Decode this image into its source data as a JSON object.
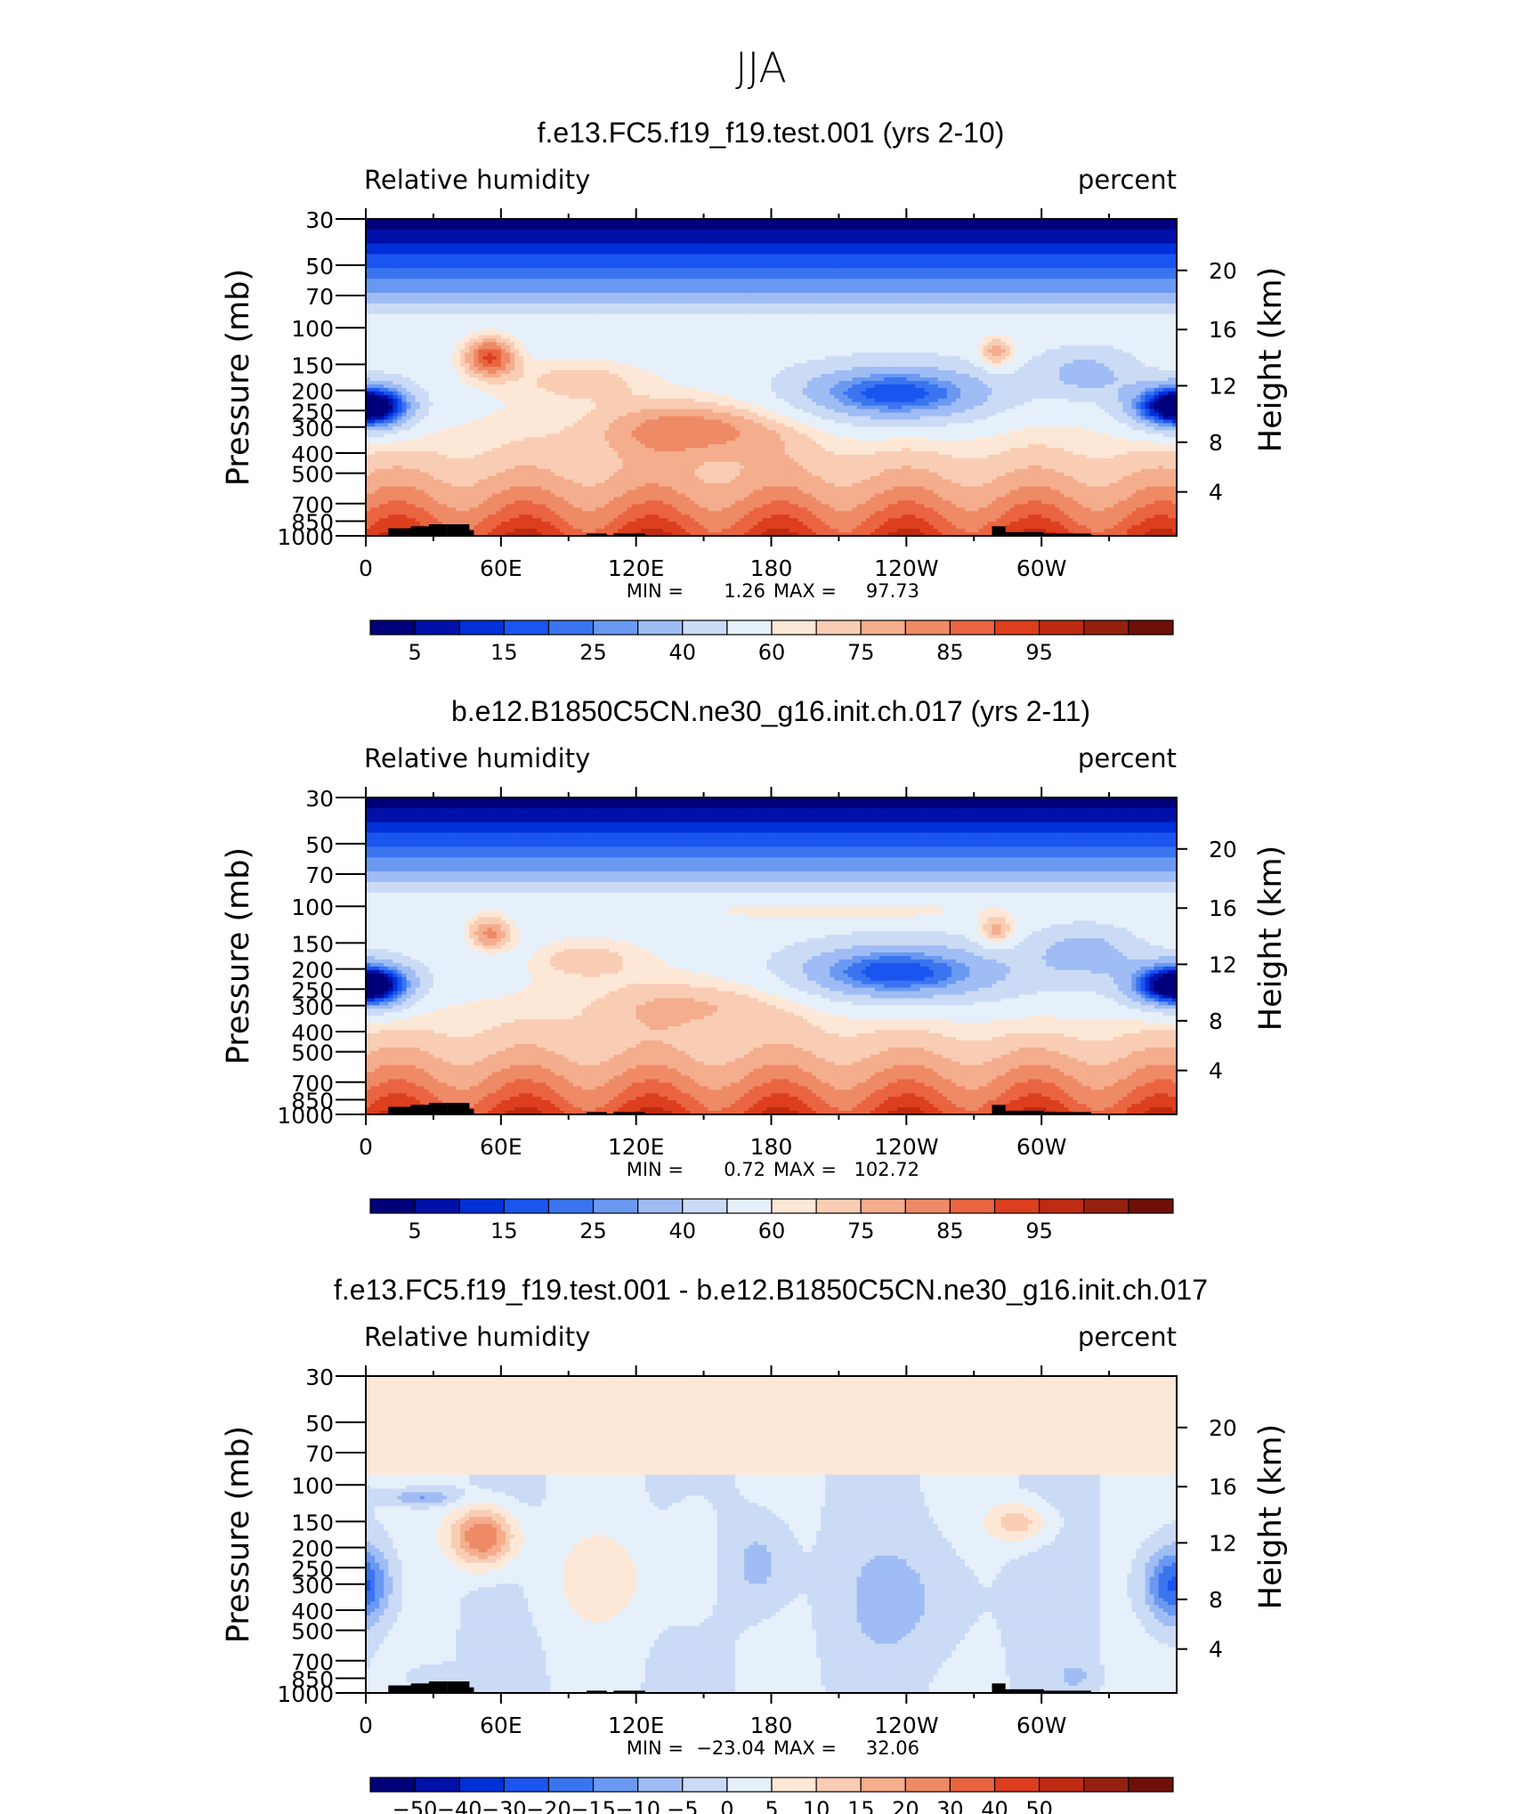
{
  "page": {
    "season_title": "JJA"
  },
  "colors": {
    "rh_levels": [
      "#00007a",
      "#0010a8",
      "#0030d8",
      "#1a55f0",
      "#3a74ef",
      "#6a99f2",
      "#9fbcf4",
      "#cbdbf6",
      "#e6f0fb",
      "#fde7d6",
      "#f9cdb4",
      "#f4ad8d",
      "#ef8a66",
      "#ea6441",
      "#dc3e1e",
      "#be2a12",
      "#962010",
      "#6e1008"
    ],
    "diff_levels": [
      "#00007a",
      "#0010a8",
      "#0030d8",
      "#1a55f0",
      "#3a74ef",
      "#6a99f2",
      "#9fbcf4",
      "#cbdbf6",
      "#e6f0fb",
      "#fde7d6",
      "#f9cdb4",
      "#f4ad8d",
      "#ef8a66",
      "#ea6441",
      "#dc3e1e",
      "#be2a12",
      "#962010",
      "#6e1008"
    ],
    "land": "#000000"
  },
  "chart_data": [
    {
      "type": "heatmap",
      "title": "f.e13.FC5.f19_f19.test.001 (yrs 2-10)",
      "left_label": "Relative humidity",
      "right_label": "percent",
      "ylabel": "Pressure (mb)",
      "ylabel_right": "Height (km)",
      "pressure_ticks": [
        "30",
        "50",
        "70",
        "100",
        "150",
        "200",
        "250",
        "300",
        "400",
        "500",
        "700",
        "850",
        "1000"
      ],
      "height_ticks": [
        "20",
        "16",
        "12",
        "8",
        "4"
      ],
      "x_ticks": [
        "0",
        "60E",
        "120E",
        "180",
        "120W",
        "60W"
      ],
      "x_range_deg": [
        0,
        360
      ],
      "pressure_range_mb": [
        30,
        1000
      ],
      "stats": {
        "min_label": "MIN =",
        "min": "1.26",
        "max_label": "MAX =",
        "max": "97.73"
      },
      "colorbar_labels": [
        "5",
        "15",
        "25",
        "40",
        "60",
        "75",
        "85",
        "95"
      ],
      "colorbar": "rh_levels",
      "field": "rh_ctl"
    },
    {
      "type": "heatmap",
      "title": "b.e12.B1850C5CN.ne30_g16.init.ch.017 (yrs 2-11)",
      "left_label": "Relative humidity",
      "right_label": "percent",
      "ylabel": "Pressure (mb)",
      "ylabel_right": "Height (km)",
      "pressure_ticks": [
        "30",
        "50",
        "70",
        "100",
        "150",
        "200",
        "250",
        "300",
        "400",
        "500",
        "700",
        "850",
        "1000"
      ],
      "height_ticks": [
        "20",
        "16",
        "12",
        "8",
        "4"
      ],
      "x_ticks": [
        "0",
        "60E",
        "120E",
        "180",
        "120W",
        "60W"
      ],
      "x_range_deg": [
        0,
        360
      ],
      "pressure_range_mb": [
        30,
        1000
      ],
      "stats": {
        "min_label": "MIN =",
        "min": "0.72",
        "max_label": "MAX =",
        "max": "102.72"
      },
      "colorbar_labels": [
        "5",
        "15",
        "25",
        "40",
        "60",
        "75",
        "85",
        "95"
      ],
      "colorbar": "rh_levels",
      "field": "rh_obs"
    },
    {
      "type": "heatmap",
      "title": "f.e13.FC5.f19_f19.test.001 - b.e12.B1850C5CN.ne30_g16.init.ch.017",
      "left_label": "Relative humidity",
      "right_label": "percent",
      "ylabel": "Pressure (mb)",
      "ylabel_right": "Height (km)",
      "pressure_ticks": [
        "30",
        "50",
        "70",
        "100",
        "150",
        "200",
        "250",
        "300",
        "400",
        "500",
        "700",
        "850",
        "1000"
      ],
      "height_ticks": [
        "20",
        "16",
        "12",
        "8",
        "4"
      ],
      "x_ticks": [
        "0",
        "60E",
        "120E",
        "180",
        "120W",
        "60W"
      ],
      "x_range_deg": [
        0,
        360
      ],
      "pressure_range_mb": [
        30,
        1000
      ],
      "stats": {
        "min_label": "MIN =",
        "min": "−23.04",
        "max_label": "MAX =",
        "max": "32.06"
      },
      "colorbar_labels": [
        "−50",
        "−40",
        "−30",
        "−20",
        "−15",
        "−10",
        "−5",
        "0",
        "5",
        "10",
        "15",
        "20",
        "30",
        "40",
        "50"
      ],
      "colorbar": "diff_levels",
      "field": "rh_diff"
    }
  ]
}
